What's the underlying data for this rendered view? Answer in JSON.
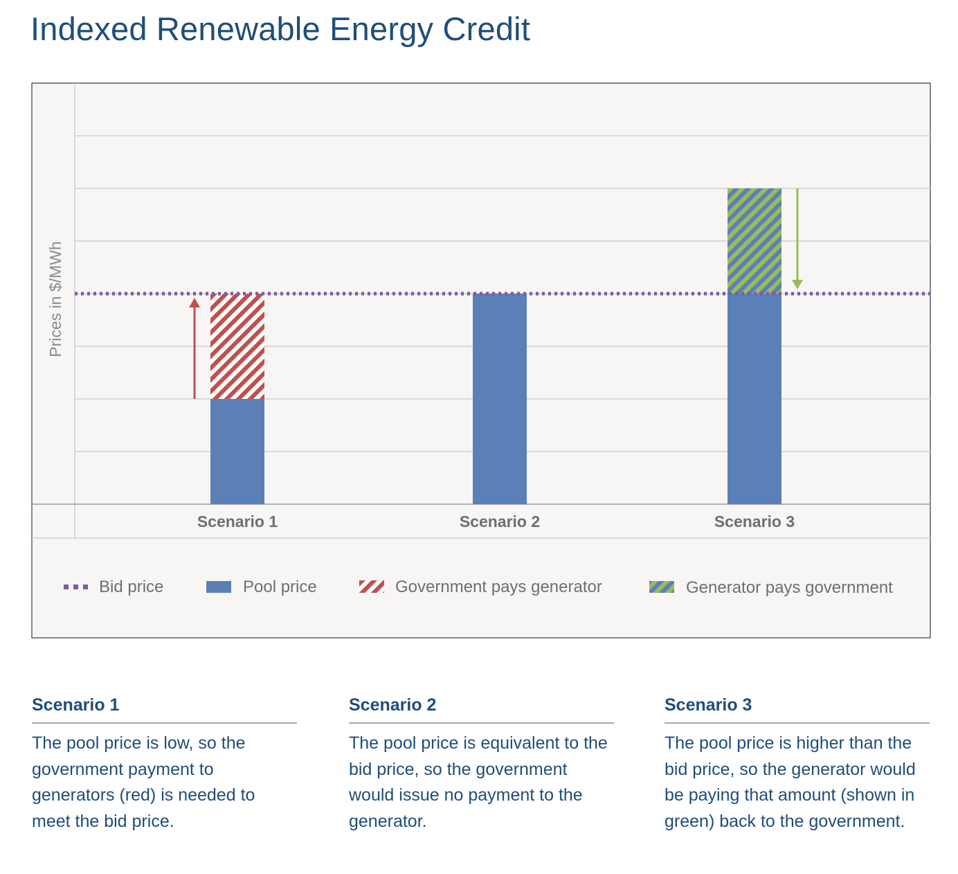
{
  "page": {
    "title": "Indexed Renewable Energy Credit"
  },
  "chart_data": {
    "type": "bar",
    "stacked": true,
    "title": "Indexed Renewable Energy Credit",
    "ylabel": "Prices in $/MWh",
    "xlabel": "",
    "ylim": [
      0,
      8
    ],
    "y_tick_labels_shown": false,
    "grid": true,
    "categories": [
      "Scenario 1",
      "Scenario 2",
      "Scenario 3"
    ],
    "bid_price": 4,
    "series": [
      {
        "name": "Pool price",
        "values": [
          2,
          4,
          4
        ],
        "color": "#5b80b8",
        "style": "solid"
      },
      {
        "name": "Government pays generator",
        "values": [
          2,
          0,
          0
        ],
        "color": "#c0504d",
        "style": "hatched"
      },
      {
        "name": "Generator pays government",
        "values": [
          0,
          0,
          2
        ],
        "color": "#9bbb59",
        "style": "hatched"
      }
    ],
    "annotations": [
      {
        "category": "Scenario 1",
        "arrow": "up",
        "from": 2,
        "to": 4,
        "color": "#c0504d"
      },
      {
        "category": "Scenario 3",
        "arrow": "down",
        "from": 6,
        "to": 4,
        "color": "#9bbb59"
      }
    ],
    "legend": {
      "placement": "bottom",
      "entries": [
        {
          "label": "Bid price",
          "symbol": "dotted-line",
          "color": "#7d5aa6"
        },
        {
          "label": "Pool price",
          "symbol": "solid",
          "color": "#5b80b8"
        },
        {
          "label": "Government pays generator",
          "symbol": "hatch",
          "color": "#c0504d"
        },
        {
          "label": "Generator pays government",
          "symbol": "hatch",
          "color": "#9bbb59"
        }
      ]
    }
  },
  "scenarios": [
    {
      "title": "Scenario 1",
      "text": "The pool price is low, so the government payment to generators (red) is needed to meet the bid price."
    },
    {
      "title": "Scenario 2",
      "text": "The pool price is equivalent to the bid price, so the government would issue no payment to the generator."
    },
    {
      "title": "Scenario 3",
      "text": "The pool price is higher than the bid price, so the generator would be paying that amount (shown in green) back to the government."
    }
  ]
}
